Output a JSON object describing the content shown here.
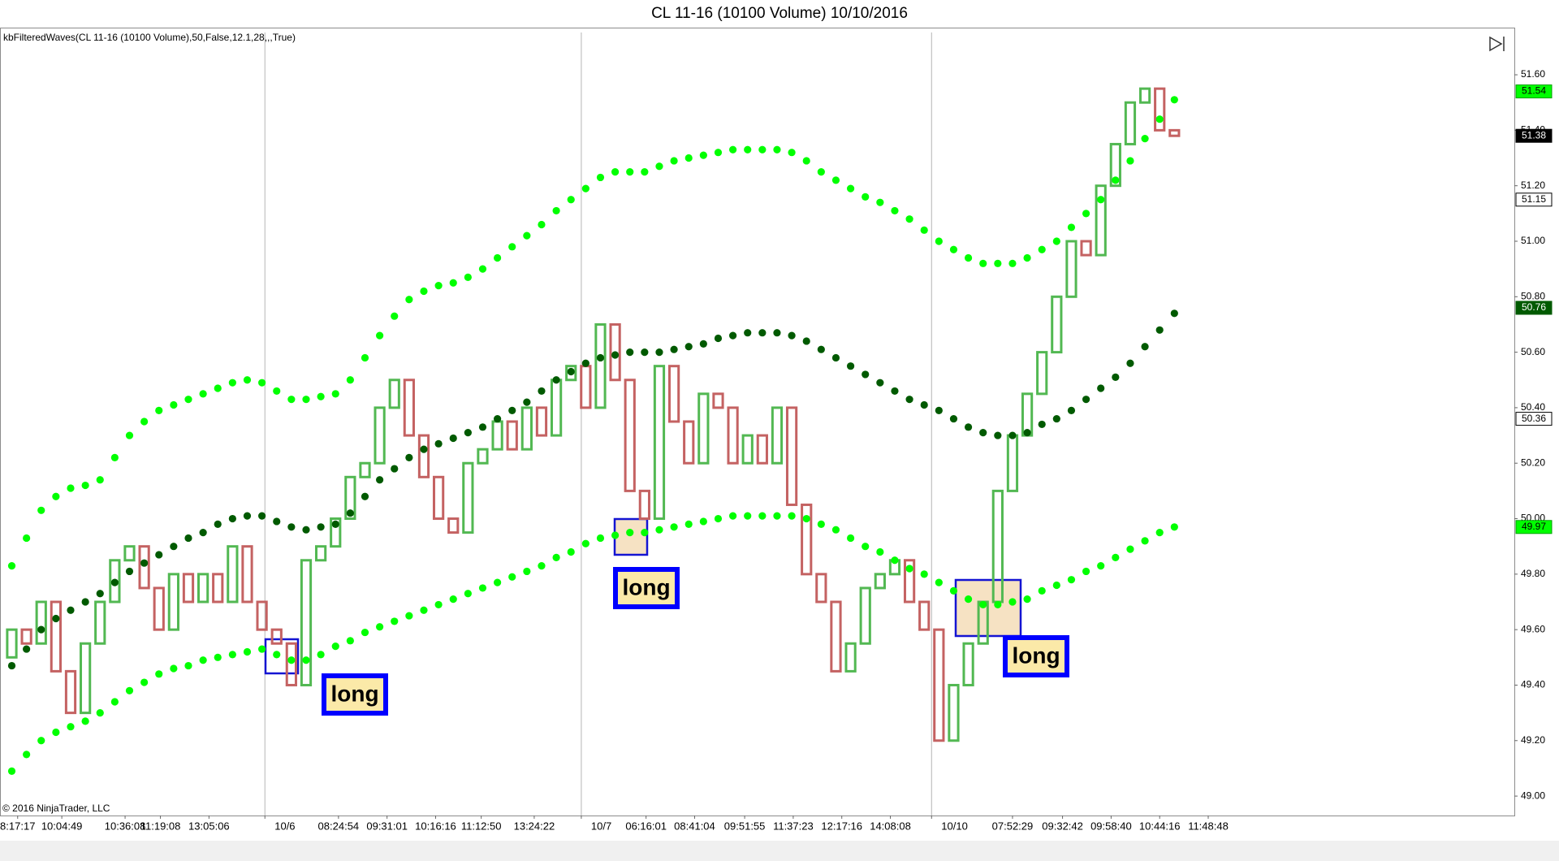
{
  "chart_data": {
    "type": "candlestick",
    "title": "CL 11-16 (10100 Volume)  10/10/2016",
    "indicator_label": "kbFilteredWaves(CL  11-16  (10100  Volume),50,False,12.1,28,,,True)",
    "copyright": "© 2016 NinjaTrader, LLC",
    "up_color": "#52b852",
    "down_color": "#c46262",
    "open": [
      49.5,
      49.6,
      49.55,
      49.7,
      49.45,
      49.3,
      49.55,
      49.7,
      49.85,
      49.9,
      49.75,
      49.6,
      49.8,
      49.7,
      49.8,
      49.7,
      49.9,
      49.7,
      49.6,
      49.55,
      49.4,
      49.85,
      49.9,
      50.0,
      50.15,
      50.2,
      50.4,
      50.5,
      50.3,
      50.15,
      50.0,
      49.95,
      50.2,
      50.25,
      50.35,
      50.25,
      50.4,
      50.3,
      50.5,
      50.55,
      50.4,
      50.7,
      50.5,
      50.1,
      50.0,
      50.55,
      50.35,
      50.2,
      50.45,
      50.4,
      50.2,
      50.3,
      50.2,
      50.4,
      50.05,
      49.8,
      49.7,
      49.45,
      49.55,
      49.75,
      49.8,
      49.85,
      49.7,
      49.6,
      49.2,
      49.4,
      49.55,
      49.7,
      50.1,
      50.3,
      50.45,
      50.6,
      50.8,
      51.0,
      50.95,
      51.2,
      51.35,
      51.5,
      51.55,
      51.4
    ],
    "close": [
      49.6,
      49.55,
      49.7,
      49.45,
      49.3,
      49.55,
      49.7,
      49.85,
      49.9,
      49.75,
      49.6,
      49.8,
      49.7,
      49.8,
      49.7,
      49.9,
      49.7,
      49.6,
      49.55,
      49.4,
      49.85,
      49.9,
      50.0,
      50.15,
      50.2,
      50.4,
      50.5,
      50.3,
      50.15,
      50.0,
      49.95,
      50.2,
      50.25,
      50.35,
      50.25,
      50.4,
      50.3,
      50.5,
      50.55,
      50.4,
      50.7,
      50.5,
      50.1,
      50.0,
      50.55,
      50.35,
      50.2,
      50.45,
      50.4,
      50.2,
      50.3,
      50.2,
      50.4,
      50.05,
      49.8,
      49.7,
      49.45,
      49.55,
      49.75,
      49.8,
      49.85,
      49.7,
      49.6,
      49.2,
      49.4,
      49.55,
      49.7,
      50.1,
      50.3,
      50.45,
      50.6,
      50.8,
      51.0,
      50.95,
      51.2,
      51.35,
      51.5,
      51.55,
      51.4,
      51.38
    ],
    "overlays": [
      {
        "color": "#00ff00",
        "values": [
          49.83,
          49.93,
          50.03,
          50.08,
          50.11,
          50.12,
          50.14,
          50.22,
          50.3,
          50.35,
          50.39,
          50.41,
          50.43,
          50.45,
          50.47,
          50.49,
          50.5,
          50.49,
          50.46,
          50.43,
          50.43,
          50.44,
          50.45,
          50.5,
          50.58,
          50.66,
          50.73,
          50.79,
          50.82,
          50.84,
          50.85,
          50.87,
          50.9,
          50.94,
          50.98,
          51.02,
          51.06,
          51.11,
          51.15,
          51.19,
          51.23,
          51.25,
          51.25,
          51.25,
          51.27,
          51.29,
          51.3,
          51.31,
          51.32,
          51.33,
          51.33,
          51.33,
          51.33,
          51.32,
          51.29,
          51.25,
          51.22,
          51.19,
          51.16,
          51.14,
          51.11,
          51.08,
          51.04,
          51.0,
          50.97,
          50.94,
          50.92,
          50.92,
          50.92,
          50.94,
          50.97,
          51.0,
          51.05,
          51.1,
          51.15,
          51.22,
          51.29,
          51.37,
          51.44,
          51.51
        ]
      },
      {
        "color": "#005a00",
        "values": [
          49.47,
          49.53,
          49.6,
          49.64,
          49.67,
          49.7,
          49.73,
          49.77,
          49.81,
          49.84,
          49.87,
          49.9,
          49.93,
          49.95,
          49.98,
          50.0,
          50.01,
          50.01,
          49.99,
          49.97,
          49.96,
          49.97,
          49.98,
          50.02,
          50.08,
          50.14,
          50.18,
          50.22,
          50.25,
          50.27,
          50.29,
          50.31,
          50.33,
          50.36,
          50.39,
          50.42,
          50.46,
          50.5,
          50.53,
          50.56,
          50.58,
          50.59,
          50.6,
          50.6,
          50.6,
          50.61,
          50.62,
          50.63,
          50.65,
          50.66,
          50.67,
          50.67,
          50.67,
          50.66,
          50.64,
          50.61,
          50.58,
          50.55,
          50.52,
          50.49,
          50.46,
          50.43,
          50.41,
          50.39,
          50.36,
          50.33,
          50.31,
          50.3,
          50.3,
          50.31,
          50.34,
          50.36,
          50.39,
          50.43,
          50.47,
          50.51,
          50.56,
          50.62,
          50.68,
          50.74
        ]
      },
      {
        "color": "#00ff00",
        "values": [
          49.09,
          49.15,
          49.2,
          49.23,
          49.25,
          49.27,
          49.3,
          49.34,
          49.38,
          49.41,
          49.44,
          49.46,
          49.47,
          49.49,
          49.5,
          49.51,
          49.52,
          49.53,
          49.51,
          49.49,
          49.49,
          49.51,
          49.54,
          49.56,
          49.59,
          49.61,
          49.63,
          49.65,
          49.67,
          49.69,
          49.71,
          49.73,
          49.75,
          49.77,
          49.79,
          49.81,
          49.83,
          49.86,
          49.88,
          49.91,
          49.93,
          49.94,
          49.95,
          49.95,
          49.96,
          49.97,
          49.98,
          49.99,
          50.0,
          50.01,
          50.01,
          50.01,
          50.01,
          50.01,
          50.0,
          49.98,
          49.96,
          49.93,
          49.9,
          49.88,
          49.85,
          49.82,
          49.8,
          49.77,
          49.74,
          49.71,
          49.69,
          49.69,
          49.7,
          49.71,
          49.74,
          49.76,
          49.78,
          49.81,
          49.83,
          49.86,
          49.89,
          49.92,
          49.95,
          49.97
        ]
      }
    ],
    "xlim": [
      -0.8,
      102.1
    ],
    "xticks": [
      {
        "value": 0.4,
        "label": "8:17:17"
      },
      {
        "value": 3.4,
        "label": "10:04:49"
      },
      {
        "value": 7.7,
        "label": "10:36:08"
      },
      {
        "value": 10.1,
        "label": "11:19:08"
      },
      {
        "value": 13.4,
        "label": "13:05:06"
      },
      {
        "value": 17.2,
        "label": "10/6",
        "session_break": true
      },
      {
        "value": 22.2,
        "label": "08:24:54"
      },
      {
        "value": 25.5,
        "label": "09:31:01"
      },
      {
        "value": 28.8,
        "label": "10:16:16"
      },
      {
        "value": 31.9,
        "label": "11:12:50"
      },
      {
        "value": 35.5,
        "label": "13:24:22"
      },
      {
        "value": 38.7,
        "label": "10/7",
        "session_break": true
      },
      {
        "value": 43.1,
        "label": "06:16:01"
      },
      {
        "value": 46.4,
        "label": "08:41:04"
      },
      {
        "value": 49.8,
        "label": "09:51:55"
      },
      {
        "value": 53.1,
        "label": "11:37:23"
      },
      {
        "value": 56.4,
        "label": "12:17:16"
      },
      {
        "value": 59.7,
        "label": "14:08:08"
      },
      {
        "value": 62.5,
        "label": "10/10",
        "session_break": true
      },
      {
        "value": 68.0,
        "label": "07:52:29"
      },
      {
        "value": 71.4,
        "label": "09:32:42"
      },
      {
        "value": 74.7,
        "label": "09:58:40"
      },
      {
        "value": 78.0,
        "label": "10:44:16"
      },
      {
        "value": 81.3,
        "label": "11:48:48"
      }
    ],
    "ylim": [
      48.93,
      51.77
    ],
    "yticks": [
      {
        "value": 49.0,
        "label": "49.00"
      },
      {
        "value": 49.2,
        "label": "49.20"
      },
      {
        "value": 49.4,
        "label": "49.40"
      },
      {
        "value": 49.6,
        "label": "49.60"
      },
      {
        "value": 49.8,
        "label": "49.80"
      },
      {
        "value": 50.0,
        "label": "50.00"
      },
      {
        "value": 50.2,
        "label": "50.20"
      },
      {
        "value": 50.4,
        "label": "50.40"
      },
      {
        "value": 50.6,
        "label": "50.60"
      },
      {
        "value": 50.8,
        "label": "50.80"
      },
      {
        "value": 51.0,
        "label": "51.00"
      },
      {
        "value": 51.2,
        "label": "51.20"
      },
      {
        "value": 51.4,
        "label": "51.40"
      },
      {
        "value": 51.6,
        "label": "51.60"
      }
    ],
    "price_markers": [
      {
        "value": 51.54,
        "fill": "#00ff00",
        "text_color": "#000000",
        "border": "#00a000"
      },
      {
        "value": 51.38,
        "fill": "#000000",
        "text_color": "#ffffff",
        "border": "#000000"
      },
      {
        "value": 51.15,
        "fill": "#ffffff",
        "text_color": "#000000",
        "border": "#000000"
      },
      {
        "value": 50.76,
        "fill": "#005a00",
        "text_color": "#ffffff",
        "border": "#005a00"
      },
      {
        "value": 50.36,
        "fill": "#ffffff",
        "text_color": "#000000",
        "border": "#000000"
      },
      {
        "value": 49.97,
        "fill": "#00ff00",
        "text_color": "#000000",
        "border": "#00a000"
      }
    ],
    "annotations": [
      "long",
      "long",
      "long"
    ]
  }
}
